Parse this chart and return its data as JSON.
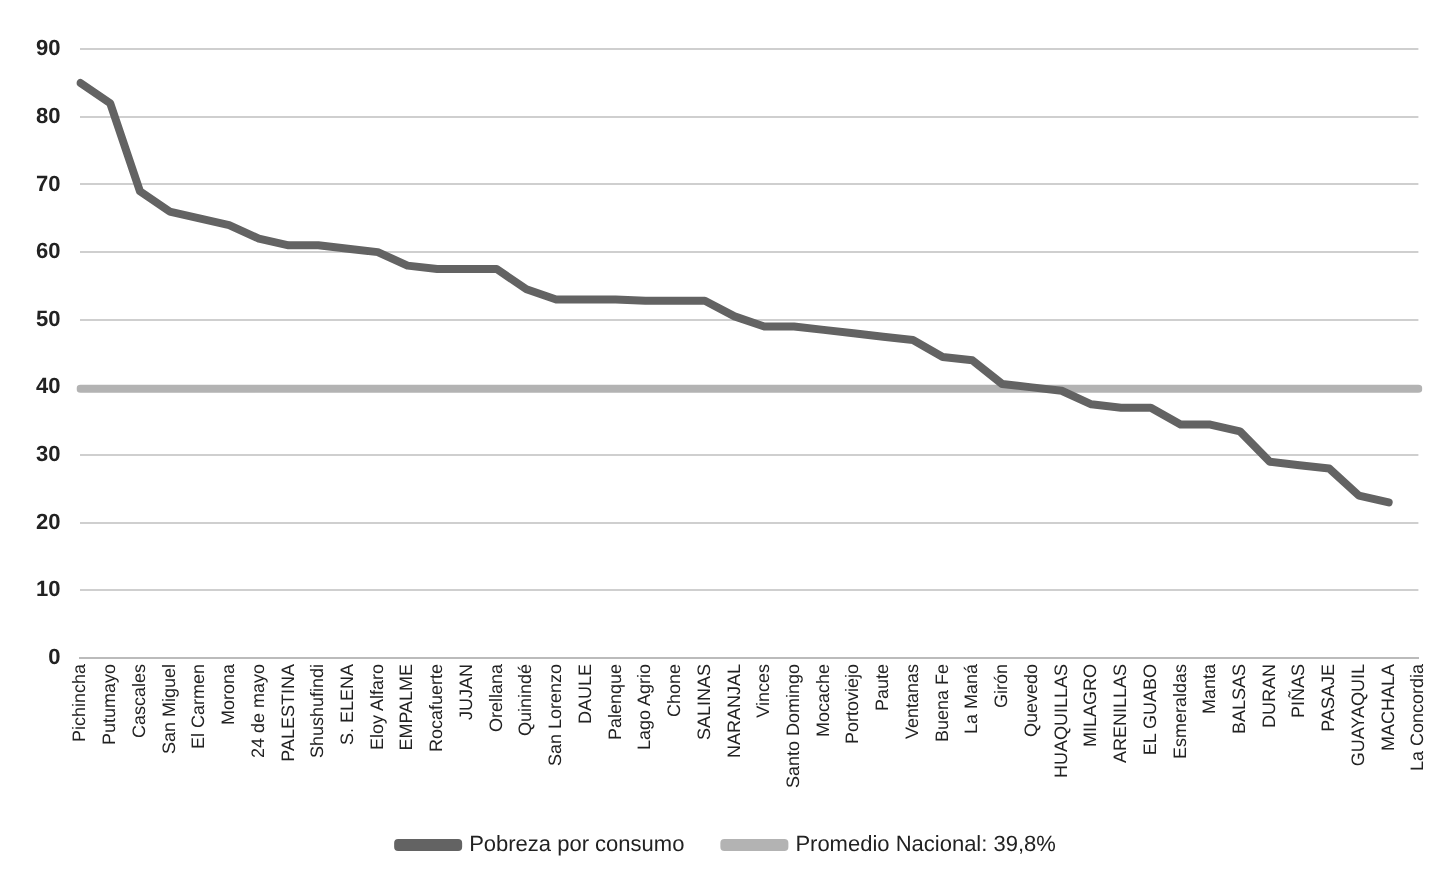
{
  "chart_data": {
    "type": "line",
    "categories": [
      "Pichincha",
      "Putumayo",
      "Cascales",
      "San Miguel",
      "El Carmen",
      "Morona",
      "24 de mayo",
      "PALESTINA",
      "Shushufindi",
      "S. ELENA",
      "Eloy Alfaro",
      "EMPALME",
      "Rocafuerte",
      "JUJAN",
      "Orellana",
      "Quinindé",
      "San Lorenzo",
      "DAULE",
      "Palenque",
      "Lago Agrio",
      "Chone",
      "SALINAS",
      "NARANJAL",
      "Vinces",
      "Santo Domingo",
      "Mocache",
      "Portoviejo",
      "Paute",
      "Ventanas",
      "Buena Fe",
      "La Maná",
      "Girón",
      "Quevedo",
      "HUAQUILLAS",
      "MILAGRO",
      "ARENILLAS",
      "EL GUABO",
      "Esmeraldas",
      "Manta",
      "BALSAS",
      "DURAN",
      "PIÑAS",
      "PASAJE",
      "GUAYAQUIL",
      "MACHALA",
      "La Concordia"
    ],
    "series": [
      {
        "name": "Pobreza por consumo",
        "color": "#636363",
        "values": [
          85,
          82,
          69,
          66,
          65,
          64,
          62,
          61,
          61,
          60.5,
          60,
          58,
          57.5,
          57.5,
          57.5,
          54.5,
          53,
          53,
          53,
          52.8,
          52.8,
          52.8,
          50.5,
          49,
          49,
          48.5,
          48,
          47.5,
          47,
          44.5,
          44,
          40.5,
          40,
          39.5,
          37.5,
          37,
          37,
          34.5,
          34.5,
          33.5,
          29,
          28.5,
          28,
          24,
          23,
          null
        ]
      },
      {
        "name": "Promedio Nacional: 39,8%",
        "color": "#b3b3b3",
        "values": [
          39.8,
          39.8,
          39.8,
          39.8,
          39.8,
          39.8,
          39.8,
          39.8,
          39.8,
          39.8,
          39.8,
          39.8,
          39.8,
          39.8,
          39.8,
          39.8,
          39.8,
          39.8,
          39.8,
          39.8,
          39.8,
          39.8,
          39.8,
          39.8,
          39.8,
          39.8,
          39.8,
          39.8,
          39.8,
          39.8,
          39.8,
          39.8,
          39.8,
          39.8,
          39.8,
          39.8,
          39.8,
          39.8,
          39.8,
          39.8,
          39.8,
          39.8,
          39.8,
          39.8,
          39.8,
          39.8
        ]
      }
    ],
    "ylim": [
      0,
      90
    ],
    "yticks": [
      0,
      10,
      20,
      30,
      40,
      50,
      60,
      70,
      80,
      90
    ],
    "grid": "y",
    "legend": "bottom",
    "marker": "none",
    "line_style": "solid"
  }
}
